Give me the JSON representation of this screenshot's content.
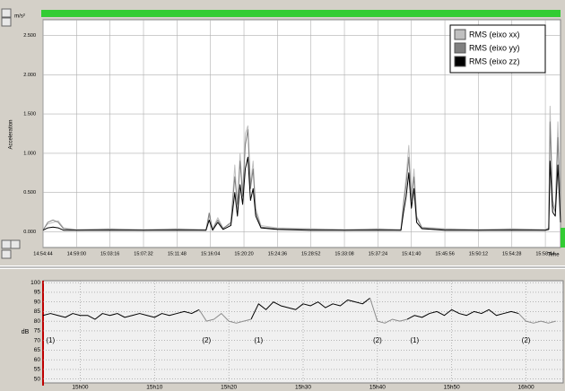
{
  "chart_data": [
    {
      "type": "line",
      "ylabel": "Acceleration",
      "y_unit": "m/s²",
      "xlabel": "Time",
      "x": [
        "14:54:44",
        "14:55:20",
        "14:56:00",
        "14:56:40",
        "14:57:20",
        "14:59:00",
        "15:03:16",
        "15:07:32",
        "15:11:48",
        "15:15:30",
        "15:15:54",
        "15:16:20",
        "15:17:00",
        "15:17:40",
        "15:18:40",
        "15:19:10",
        "15:19:30",
        "15:19:50",
        "15:20:10",
        "15:20:30",
        "15:20:50",
        "15:21:10",
        "15:21:30",
        "15:21:50",
        "15:22:30",
        "15:24:36",
        "15:28:52",
        "15:33:08",
        "15:37:24",
        "15:40:20",
        "15:40:40",
        "15:41:00",
        "15:41:20",
        "15:41:40",
        "15:42:00",
        "15:42:20",
        "15:43:00",
        "15:45:56",
        "15:50:12",
        "15:54:28",
        "15:58:44",
        "15:59:10",
        "15:59:20",
        "15:59:40",
        "16:00:00",
        "16:00:20",
        "16:00:40"
      ],
      "series": [
        {
          "name": "RMS (eixo xx)",
          "color": "#c0c0c0",
          "values": [
            0.03,
            0.1,
            0.12,
            0.14,
            0.05,
            0.03,
            0.04,
            0.03,
            0.04,
            0.03,
            0.2,
            0.04,
            0.18,
            0.05,
            0.1,
            0.85,
            0.3,
            1.0,
            0.5,
            1.25,
            1.35,
            0.6,
            0.9,
            0.3,
            0.08,
            0.05,
            0.04,
            0.03,
            0.04,
            0.03,
            0.4,
            0.7,
            1.1,
            0.45,
            0.8,
            0.2,
            0.06,
            0.04,
            0.03,
            0.04,
            0.03,
            0.05,
            1.6,
            0.4,
            0.3,
            1.4,
            0.2
          ]
        },
        {
          "name": "RMS (eixo yy)",
          "color": "#808080",
          "values": [
            0.02,
            0.12,
            0.15,
            0.12,
            0.04,
            0.02,
            0.03,
            0.02,
            0.03,
            0.02,
            0.24,
            0.03,
            0.15,
            0.04,
            0.12,
            0.7,
            0.35,
            0.9,
            0.45,
            1.1,
            1.3,
            0.55,
            0.8,
            0.25,
            0.06,
            0.04,
            0.03,
            0.02,
            0.03,
            0.02,
            0.35,
            0.6,
            0.95,
            0.4,
            0.7,
            0.18,
            0.05,
            0.03,
            0.02,
            0.03,
            0.02,
            0.04,
            1.4,
            0.35,
            0.25,
            1.2,
            0.18
          ]
        },
        {
          "name": "RMS (eixo zz)",
          "color": "#000000",
          "values": [
            0.02,
            0.05,
            0.06,
            0.05,
            0.02,
            0.02,
            0.02,
            0.02,
            0.02,
            0.02,
            0.15,
            0.02,
            0.12,
            0.03,
            0.08,
            0.5,
            0.2,
            0.6,
            0.35,
            0.8,
            0.95,
            0.4,
            0.55,
            0.2,
            0.05,
            0.03,
            0.02,
            0.02,
            0.02,
            0.02,
            0.25,
            0.45,
            0.75,
            0.3,
            0.55,
            0.12,
            0.04,
            0.02,
            0.02,
            0.02,
            0.02,
            0.03,
            0.9,
            0.25,
            0.2,
            0.85,
            0.12
          ]
        }
      ],
      "xlim": [
        "14:54:44",
        "16:00:40"
      ],
      "ylim": [
        -0.2,
        2.7
      ],
      "xticks": [
        "14:54:44",
        "14:59:00",
        "15:03:16",
        "15:07:32",
        "15:11:48",
        "15:16:04",
        "15:20:20",
        "15:24:36",
        "15:28:52",
        "15:33:08",
        "15:37:24",
        "15:41:40",
        "15:45:56",
        "15:50:12",
        "15:54:28",
        "15:58:44"
      ],
      "yticks": [
        {
          "value": 0,
          "label": "0.000"
        },
        {
          "value": 0.5,
          "label": "0.500"
        },
        {
          "value": 1,
          "label": "1.000"
        },
        {
          "value": 1.5,
          "label": "1.500"
        },
        {
          "value": 2,
          "label": "2.000"
        },
        {
          "value": 2.5,
          "label": "2.500"
        }
      ],
      "grid": true,
      "legend": "upper right"
    },
    {
      "type": "line",
      "ylabel": "dB",
      "x": [
        "14h55",
        "14h56",
        "14h57",
        "14h58",
        "14h59",
        "15h00",
        "15h01",
        "15h02",
        "15h03",
        "15h04",
        "15h05",
        "15h06",
        "15h07",
        "15h08",
        "15h09",
        "15h10",
        "15h11",
        "15h12",
        "15h13",
        "15h14",
        "15h15",
        "15h16",
        "15h17",
        "15h18",
        "15h19",
        "15h20",
        "15h21",
        "15h22",
        "15h23",
        "15h24",
        "15h25",
        "15h26",
        "15h27",
        "15h28",
        "15h29",
        "15h30",
        "15h31",
        "15h32",
        "15h33",
        "15h34",
        "15h35",
        "15h36",
        "15h37",
        "15h38",
        "15h39",
        "15h40",
        "15h41",
        "15h42",
        "15h43",
        "15h44",
        "15h45",
        "15h46",
        "15h47",
        "15h48",
        "15h49",
        "15h50",
        "15h51",
        "15h52",
        "15h53",
        "15h54",
        "15h55",
        "15h56",
        "15h57",
        "15h58",
        "15h59",
        "16h00",
        "16h01",
        "16h02",
        "16h03",
        "16h04"
      ],
      "series": [
        {
          "color": "#000000",
          "values": [
            83,
            84,
            83,
            82,
            84,
            83,
            83,
            81,
            84,
            83,
            84,
            82,
            83,
            84,
            83,
            82,
            84,
            83,
            84,
            85,
            84,
            86,
            null,
            null,
            null,
            null,
            null,
            null,
            81,
            89,
            86,
            90,
            88,
            87,
            86,
            89,
            88,
            90,
            87,
            89,
            88,
            91,
            90,
            89,
            92,
            null,
            null,
            null,
            null,
            81,
            83,
            82,
            84,
            85,
            83,
            86,
            84,
            83,
            85,
            84,
            86,
            83,
            84,
            85,
            84,
            null,
            null,
            null,
            null,
            null
          ]
        },
        {
          "color": "#8c8c8c",
          "values": [
            null,
            null,
            null,
            null,
            null,
            null,
            null,
            null,
            null,
            null,
            null,
            null,
            null,
            null,
            null,
            null,
            null,
            null,
            null,
            null,
            null,
            86,
            80,
            81,
            84,
            80,
            79,
            80,
            81,
            null,
            null,
            null,
            null,
            null,
            null,
            null,
            null,
            null,
            null,
            null,
            null,
            null,
            null,
            null,
            92,
            80,
            79,
            81,
            80,
            81,
            null,
            null,
            null,
            null,
            null,
            null,
            null,
            null,
            null,
            null,
            null,
            null,
            null,
            null,
            84,
            80,
            79,
            80,
            79,
            80
          ]
        }
      ],
      "xlim": [
        "14h55",
        "16h05"
      ],
      "ylim": [
        48,
        101
      ],
      "xticks": [
        "15h00",
        "15h10",
        "15h20",
        "15h30",
        "15h40",
        "15h50",
        "16h00"
      ],
      "yticks": [
        50,
        55,
        60,
        65,
        70,
        75,
        80,
        85,
        90,
        95,
        100
      ],
      "grid": true,
      "annotations": [
        {
          "text": "(1)",
          "x": "14h56",
          "y": 70
        },
        {
          "text": "(2)",
          "x": "15h17",
          "y": 70
        },
        {
          "text": "(1)",
          "x": "15h24",
          "y": 70
        },
        {
          "text": "(2)",
          "x": "15h40",
          "y": 70
        },
        {
          "text": "(1)",
          "x": "15h45",
          "y": 70
        },
        {
          "text": "(2)",
          "x": "16h00",
          "y": 70
        }
      ]
    }
  ]
}
